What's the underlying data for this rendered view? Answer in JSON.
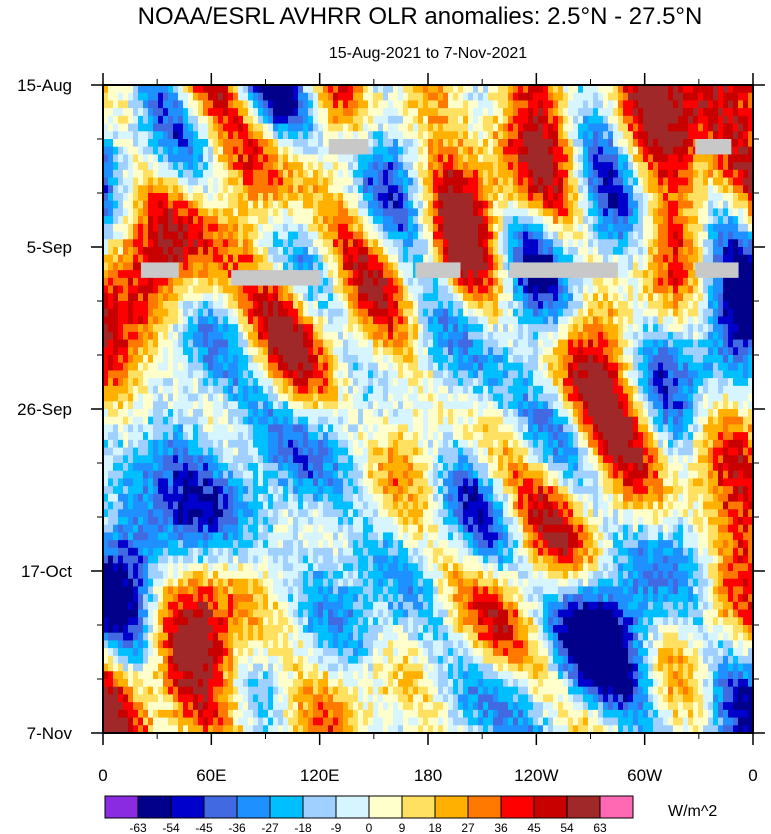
{
  "chart_data": {
    "type": "heatmap",
    "title": "NOAA/ESRL AVHRR OLR anomalies: 2.5°N - 27.5°N",
    "subtitle": "15-Aug-2021 to 7-Nov-2021",
    "xlabel": "",
    "ylabel": "",
    "x_ticks": [
      "0",
      "60E",
      "120E",
      "180",
      "120W",
      "60W",
      "0"
    ],
    "x_range_deg_east": [
      0,
      360
    ],
    "x_tick_values_deg_east": [
      0,
      60,
      120,
      180,
      240,
      300,
      360
    ],
    "y_ticks": [
      "15-Aug",
      "5-Sep",
      "26-Sep",
      "17-Oct",
      "7-Nov"
    ],
    "y_range_days": [
      0,
      84
    ],
    "y_tick_values_days": [
      0,
      21,
      42,
      63,
      84
    ],
    "colorbar": {
      "units": "W/m^2",
      "labels": [
        "-63",
        "-54",
        "-45",
        "-36",
        "-27",
        "-18",
        "-9",
        "0",
        "9",
        "18",
        "27",
        "36",
        "45",
        "54",
        "63"
      ],
      "colors": [
        "#8a2be2",
        "#00008b",
        "#0000cd",
        "#4169e1",
        "#1e90ff",
        "#00bfff",
        "#a0d0ff",
        "#d7f5ff",
        "#ffffcc",
        "#ffe060",
        "#ffb000",
        "#ff7800",
        "#ff0000",
        "#c80000",
        "#a02828",
        "#ff69b4"
      ]
    },
    "missing_data_color": "#c8c8c8",
    "missing_blocks": [
      {
        "lon_start": 125,
        "lon_end": 147,
        "day_start": 7,
        "day_end": 9
      },
      {
        "lon_start": 328,
        "lon_end": 348,
        "day_start": 7,
        "day_end": 9
      },
      {
        "lon_start": 21,
        "lon_end": 42,
        "day_start": 23,
        "day_end": 25
      },
      {
        "lon_start": 71,
        "lon_end": 120,
        "day_start": 24,
        "day_end": 26
      },
      {
        "lon_start": 173,
        "lon_end": 198,
        "day_start": 23,
        "day_end": 25
      },
      {
        "lon_start": 225,
        "lon_end": 285,
        "day_start": 23,
        "day_end": 25
      },
      {
        "lon_start": 328,
        "lon_end": 352,
        "day_start": 23,
        "day_end": 25
      }
    ]
  }
}
